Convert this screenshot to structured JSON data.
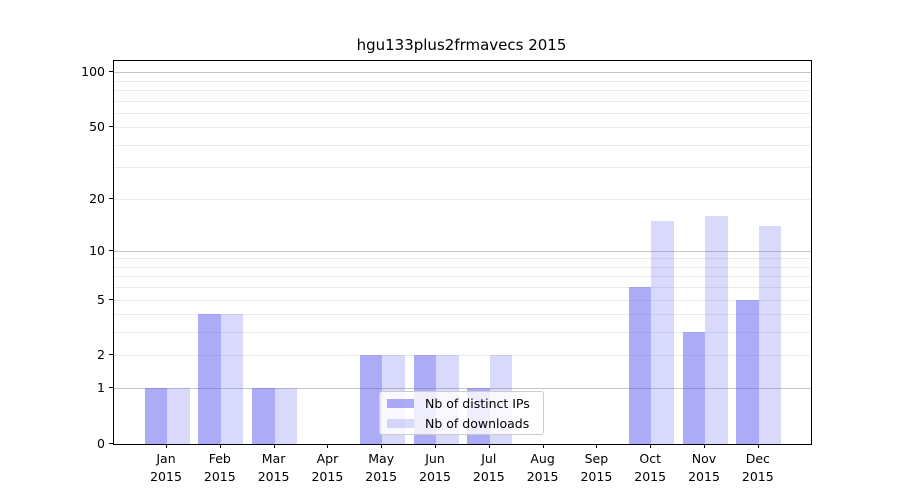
{
  "chart_data": {
    "type": "bar",
    "title": "hgu133plus2frmavecs 2015",
    "months": [
      "Jan",
      "Feb",
      "Mar",
      "Apr",
      "May",
      "Jun",
      "Jul",
      "Aug",
      "Sep",
      "Oct",
      "Nov",
      "Dec"
    ],
    "year": "2015",
    "series": [
      {
        "name": "Nb of distinct IPs",
        "color": "rgba(102,102,238,0.55)",
        "values": [
          1,
          4,
          1,
          0,
          2,
          2,
          1,
          0,
          0,
          6,
          3,
          5
        ]
      },
      {
        "name": "Nb of downloads",
        "color": "rgba(102,102,238,0.25)",
        "values": [
          1,
          4,
          1,
          0,
          2,
          2,
          2,
          0,
          0,
          15,
          16,
          14
        ]
      }
    ],
    "yscale": "log10(1+y)",
    "ylim": [
      0,
      115
    ],
    "yticks": [
      0,
      1,
      2,
      5,
      10,
      20,
      50,
      100
    ],
    "gridlines_minor": [
      2,
      3,
      4,
      5,
      6,
      7,
      8,
      9,
      20,
      30,
      40,
      50,
      60,
      70,
      80,
      90
    ],
    "gridlines_major": [
      1,
      10,
      100
    ],
    "grid": true,
    "legend_position": "lower center",
    "colors": {
      "minor_gridline": "#ebebeb",
      "major_gridline": "#c6c6c6",
      "axis": "#000000",
      "text": "#000000",
      "background": "#ffffff"
    }
  }
}
